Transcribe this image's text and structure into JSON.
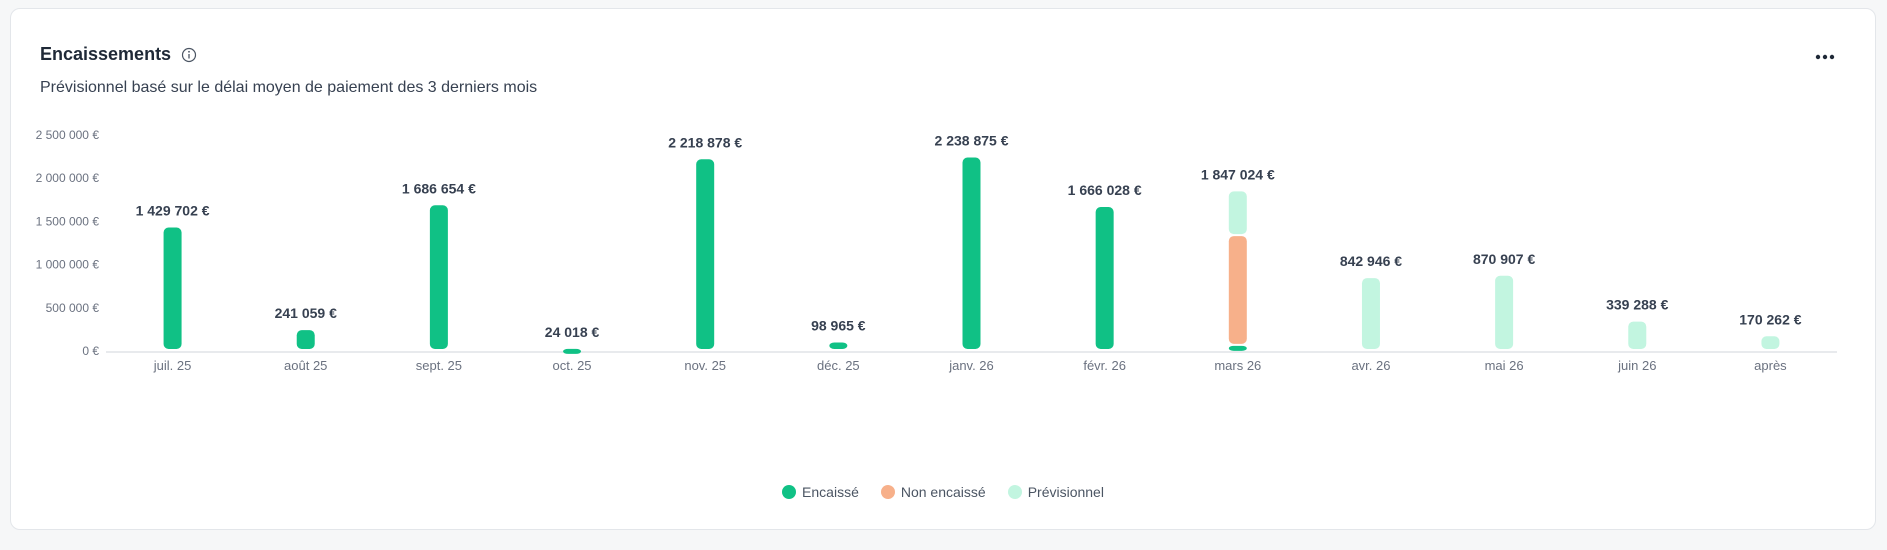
{
  "card": {
    "title": "Encaissements",
    "subtitle": "Prévisionnel basé sur le délai moyen de paiement des 3 derniers mois",
    "info_icon": "info-circle-icon",
    "menu_icon": "more-horizontal-icon"
  },
  "colors": {
    "encaisse": "#10c185",
    "non_encaisse": "#f7b08a",
    "previsionnel": "#c2f5e0",
    "axis": "#d1d5db",
    "tick_text": "#6b7280",
    "label_text": "#374151"
  },
  "chart_data": {
    "type": "bar",
    "stacked": true,
    "categories": [
      "juil. 25",
      "août 25",
      "sept. 25",
      "oct. 25",
      "nov. 25",
      "déc. 25",
      "janv. 26",
      "févr. 26",
      "mars 26",
      "avr. 26",
      "mai 26",
      "juin 26",
      "après"
    ],
    "series": [
      {
        "name": "Encaissé",
        "values": [
          1429702,
          241059,
          1686654,
          24018,
          2218878,
          98965,
          2238875,
          1666028,
          60000,
          0,
          0,
          0,
          0
        ]
      },
      {
        "name": "Non encaissé",
        "values": [
          0,
          0,
          0,
          0,
          0,
          0,
          0,
          0,
          1270000,
          0,
          0,
          0,
          0
        ]
      },
      {
        "name": "Prévisionnel",
        "values": [
          0,
          0,
          0,
          0,
          0,
          0,
          0,
          0,
          517024,
          842946,
          870907,
          339288,
          170262
        ]
      }
    ],
    "totals_labels": [
      "1 429 702 €",
      "241 059 €",
      "1 686 654 €",
      "24 018 €",
      "2 218 878 €",
      "98 965 €",
      "2 238 875 €",
      "1 666 028 €",
      "1 847 024 €",
      "842 946 €",
      "870 907 €",
      "339 288 €",
      "170 262 €"
    ],
    "y_ticks": [
      0,
      500000,
      1000000,
      1500000,
      2000000,
      2500000
    ],
    "y_tick_labels": [
      "0 €",
      "500 000 €",
      "1 000 000 €",
      "1 500 000 €",
      "2 000 000 €",
      "2 500 000 €"
    ],
    "ylim": [
      0,
      2500000
    ],
    "grid": false,
    "legend_position": "bottom-center"
  }
}
